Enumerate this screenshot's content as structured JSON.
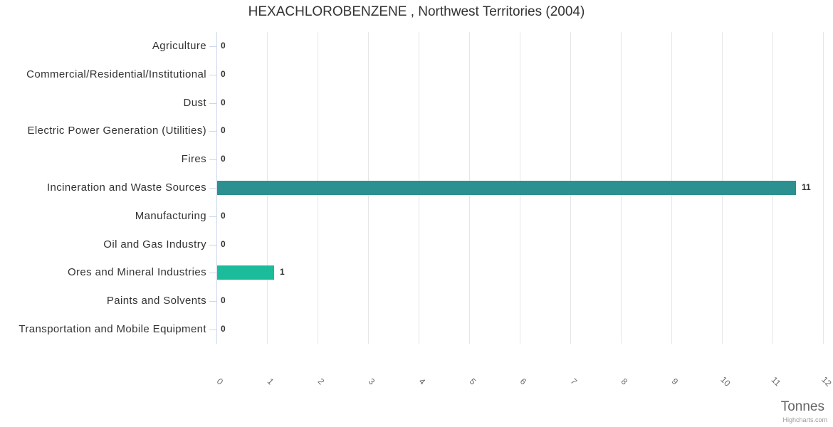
{
  "chart_data": {
    "type": "bar",
    "orientation": "horizontal",
    "title": "HEXACHLOROBENZENE , Northwest Territories (2004)",
    "categories": [
      "Agriculture",
      "Commercial/Residential/Institutional",
      "Dust",
      "Electric Power Generation (Utilities)",
      "Fires",
      "Incineration and Waste Sources",
      "Manufacturing",
      "Oil and Gas Industry",
      "Ores and Mineral Industries",
      "Paints and Solvents",
      "Transportation and Mobile Equipment"
    ],
    "values": [
      0,
      0,
      0,
      0,
      0,
      11.45,
      0,
      0,
      1.12,
      0,
      0
    ],
    "value_labels": [
      "0",
      "0",
      "0",
      "0",
      "0",
      "11",
      "0",
      "0",
      "1",
      "0",
      "0"
    ],
    "bar_colors": [
      null,
      null,
      null,
      null,
      null,
      "#2b908f",
      null,
      null,
      "#1abc9c",
      null,
      null
    ],
    "xlabel": "Tonnes",
    "xlim": [
      0,
      12
    ],
    "xticks": [
      "0",
      "1",
      "2",
      "3",
      "4",
      "5",
      "6",
      "7",
      "8",
      "9",
      "10",
      "11",
      "12"
    ],
    "grid": true,
    "legend": false
  },
  "credit": {
    "label": "Highcharts.com"
  },
  "colors": {
    "grid_line": "#e6e6e6",
    "axis_line": "#ccd6eb",
    "tick": "#ccd6eb",
    "title_text": "#333333",
    "category_text": "#333333",
    "tick_label_text": "#666666",
    "data_label_text": "#333333",
    "axis_title_text": "#666666",
    "credit_text": "#999999",
    "background": "#ffffff"
  }
}
